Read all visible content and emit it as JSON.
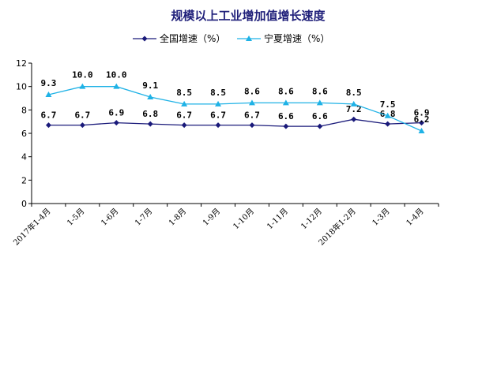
{
  "colors": {
    "national": "#1a1a7a",
    "ningxia": "#1fb2e6",
    "title": "#1f1f7a",
    "axis": "#000000"
  },
  "chart_data": {
    "type": "line",
    "title": "规模以上工业增加值增长速度",
    "categories": [
      "2017年1-4月",
      "1-5月",
      "1-6月",
      "1-7月",
      "1-8月",
      "1-9月",
      "1-10月",
      "1-11月",
      "1-12月",
      "2018年1-2月",
      "1-3月",
      "1-4月"
    ],
    "series": [
      {
        "name": "全国增速（%）",
        "color": "#1a1a7a",
        "marker": "diamond",
        "values": [
          6.7,
          6.7,
          6.9,
          6.8,
          6.7,
          6.7,
          6.7,
          6.6,
          6.6,
          7.2,
          6.8,
          6.9
        ],
        "labels": [
          "6.7",
          "6.7",
          "6.9",
          "6.8",
          "6.7",
          "6.7",
          "6.7",
          "6.6",
          "6.6",
          "7.2",
          "6.8",
          "6.9"
        ]
      },
      {
        "name": "宁夏增速（%）",
        "color": "#1fb2e6",
        "marker": "triangle",
        "values": [
          9.3,
          10.0,
          10.0,
          9.1,
          8.5,
          8.5,
          8.6,
          8.6,
          8.6,
          8.5,
          7.5,
          6.2
        ],
        "labels": [
          "9.3",
          "10.0",
          "10.0",
          "9.1",
          "8.5",
          "8.5",
          "8.6",
          "8.6",
          "8.6",
          "8.5",
          "7.5",
          "6.2"
        ]
      }
    ],
    "yticks": [
      "0",
      "2",
      "4",
      "6",
      "8",
      "10",
      "12"
    ],
    "ylim": [
      0,
      12
    ],
    "grid": false,
    "legend_position": "top"
  }
}
